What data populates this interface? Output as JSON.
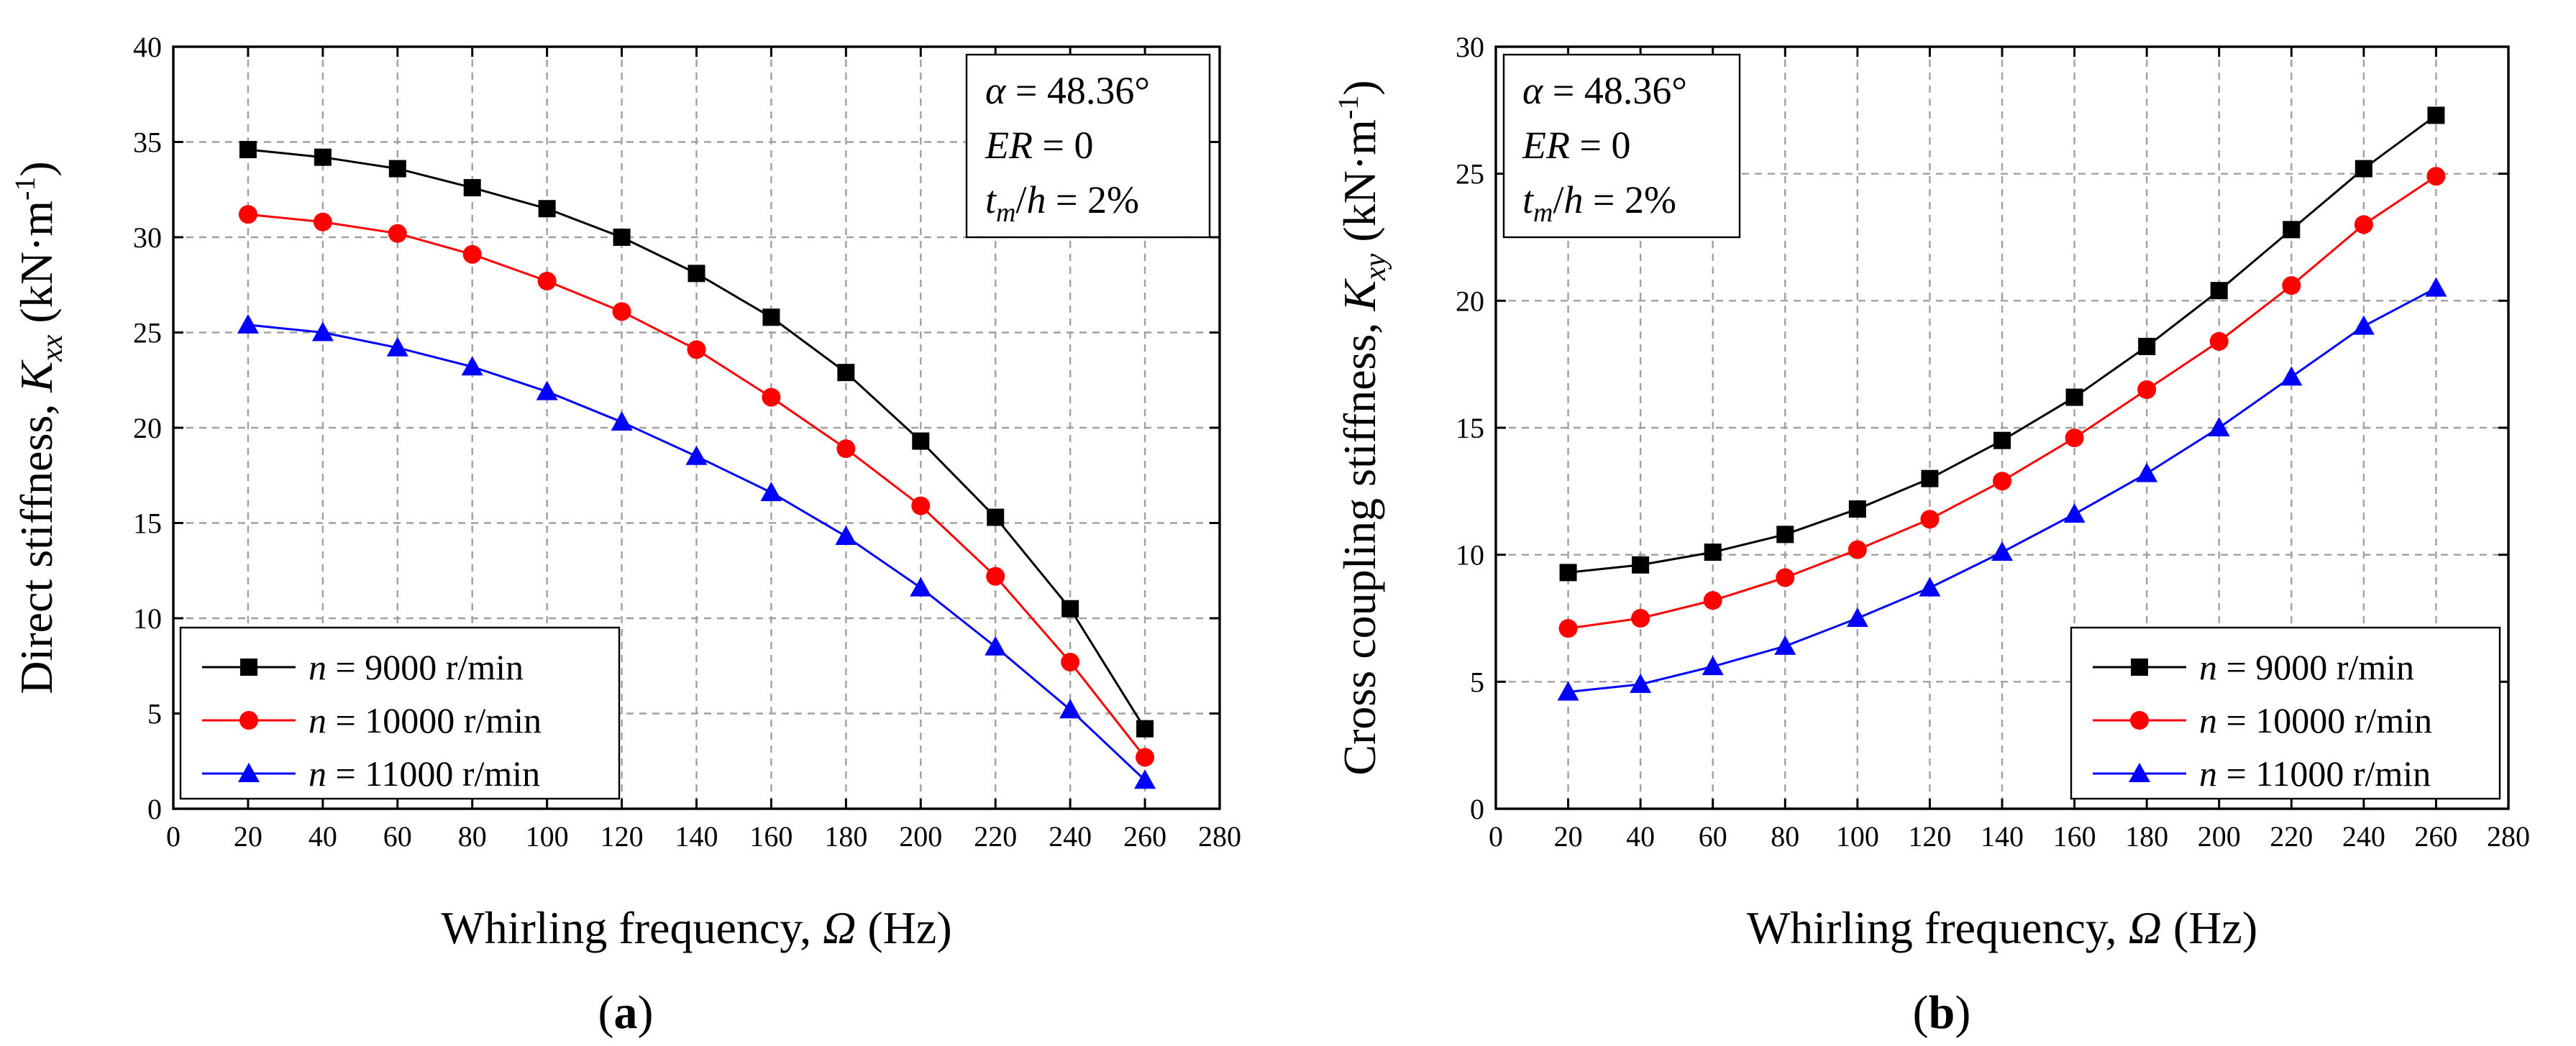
{
  "chart_data": [
    {
      "type": "line",
      "panel_label": "a",
      "xlabel_prefix": "Whirling frequency, ",
      "xlabel_symbol": "Ω",
      "xlabel_suffix": " (Hz)",
      "ylabel_prefix": "Direct stiffness, ",
      "ylabel_symbol": "K",
      "ylabel_sub": "xx",
      "ylabel_unit": " (kN·m",
      "ylabel_sup": "-1",
      "ylabel_close": ")",
      "xlim": [
        0,
        280
      ],
      "ylim": [
        0,
        40
      ],
      "xticks": [
        "0",
        "20",
        "40",
        "60",
        "80",
        "100",
        "120",
        "140",
        "160",
        "180",
        "200",
        "220",
        "240",
        "260",
        "280"
      ],
      "yticks": [
        "0",
        "5",
        "10",
        "15",
        "20",
        "25",
        "30",
        "35",
        "40"
      ],
      "grid": true,
      "legend_position": "bottom-left",
      "annotation": {
        "alpha_sym": "α",
        "alpha_val": " = 48.36°",
        "er_sym": "ER",
        "er_val": " = 0",
        "t_sym": "t",
        "t_sub": "m",
        "t_mid": "/",
        "h_sym": "h",
        "t_val": " = 2%"
      },
      "x": [
        20,
        40,
        60,
        80,
        100,
        120,
        140,
        160,
        180,
        200,
        220,
        240,
        260
      ],
      "series": [
        {
          "name_sym": "n",
          "name_rest": " = 9000 r/min",
          "color": "#000000",
          "marker": "square",
          "values": [
            34.6,
            34.2,
            33.6,
            32.6,
            31.5,
            30.0,
            28.1,
            25.8,
            22.9,
            19.3,
            15.3,
            10.5,
            4.2
          ]
        },
        {
          "name_sym": "n",
          "name_rest": " = 10000 r/min",
          "color": "#ff0000",
          "marker": "circle",
          "values": [
            31.2,
            30.8,
            30.2,
            29.1,
            27.7,
            26.1,
            24.1,
            21.6,
            18.9,
            15.9,
            12.2,
            7.7,
            2.7
          ]
        },
        {
          "name_sym": "n",
          "name_rest": " = 11000 r/min",
          "color": "#0000ff",
          "marker": "triangle",
          "values": [
            25.4,
            25.0,
            24.2,
            23.2,
            21.9,
            20.3,
            18.5,
            16.6,
            14.3,
            11.6,
            8.5,
            5.2,
            1.5
          ]
        }
      ]
    },
    {
      "type": "line",
      "panel_label": "b",
      "xlabel_prefix": "Whirling frequency, ",
      "xlabel_symbol": "Ω",
      "xlabel_suffix": " (Hz)",
      "ylabel_prefix": "Cross coupling stiffness, ",
      "ylabel_symbol": "K",
      "ylabel_sub": "xy",
      "ylabel_unit": " (kN·m",
      "ylabel_sup": "-1",
      "ylabel_close": ")",
      "xlim": [
        0,
        280
      ],
      "ylim": [
        0,
        30
      ],
      "xticks": [
        "0",
        "20",
        "40",
        "60",
        "80",
        "100",
        "120",
        "140",
        "160",
        "180",
        "200",
        "220",
        "240",
        "260",
        "280"
      ],
      "yticks": [
        "0",
        "5",
        "10",
        "15",
        "20",
        "25",
        "30"
      ],
      "grid": true,
      "legend_position": "bottom-right",
      "annotation": {
        "alpha_sym": "α",
        "alpha_val": " = 48.36°",
        "er_sym": "ER",
        "er_val": " = 0",
        "t_sym": "t",
        "t_sub": "m",
        "t_mid": "/",
        "h_sym": "h",
        "t_val": " = 2%"
      },
      "x": [
        20,
        40,
        60,
        80,
        100,
        120,
        140,
        160,
        180,
        200,
        220,
        240,
        260
      ],
      "series": [
        {
          "name_sym": "n",
          "name_rest": " = 9000 r/min",
          "color": "#000000",
          "marker": "square",
          "values": [
            9.3,
            9.6,
            10.1,
            10.8,
            11.8,
            13.0,
            14.5,
            16.2,
            18.2,
            20.4,
            22.8,
            25.2,
            27.3
          ]
        },
        {
          "name_sym": "n",
          "name_rest": " = 10000 r/min",
          "color": "#ff0000",
          "marker": "circle",
          "values": [
            7.1,
            7.5,
            8.2,
            9.1,
            10.2,
            11.4,
            12.9,
            14.6,
            16.5,
            18.4,
            20.6,
            23.0,
            24.9
          ]
        },
        {
          "name_sym": "n",
          "name_rest": " = 11000 r/min",
          "color": "#0000ff",
          "marker": "triangle",
          "values": [
            4.6,
            4.9,
            5.6,
            6.4,
            7.5,
            8.7,
            10.1,
            11.6,
            13.2,
            15.0,
            17.0,
            19.0,
            20.5
          ]
        }
      ]
    }
  ]
}
